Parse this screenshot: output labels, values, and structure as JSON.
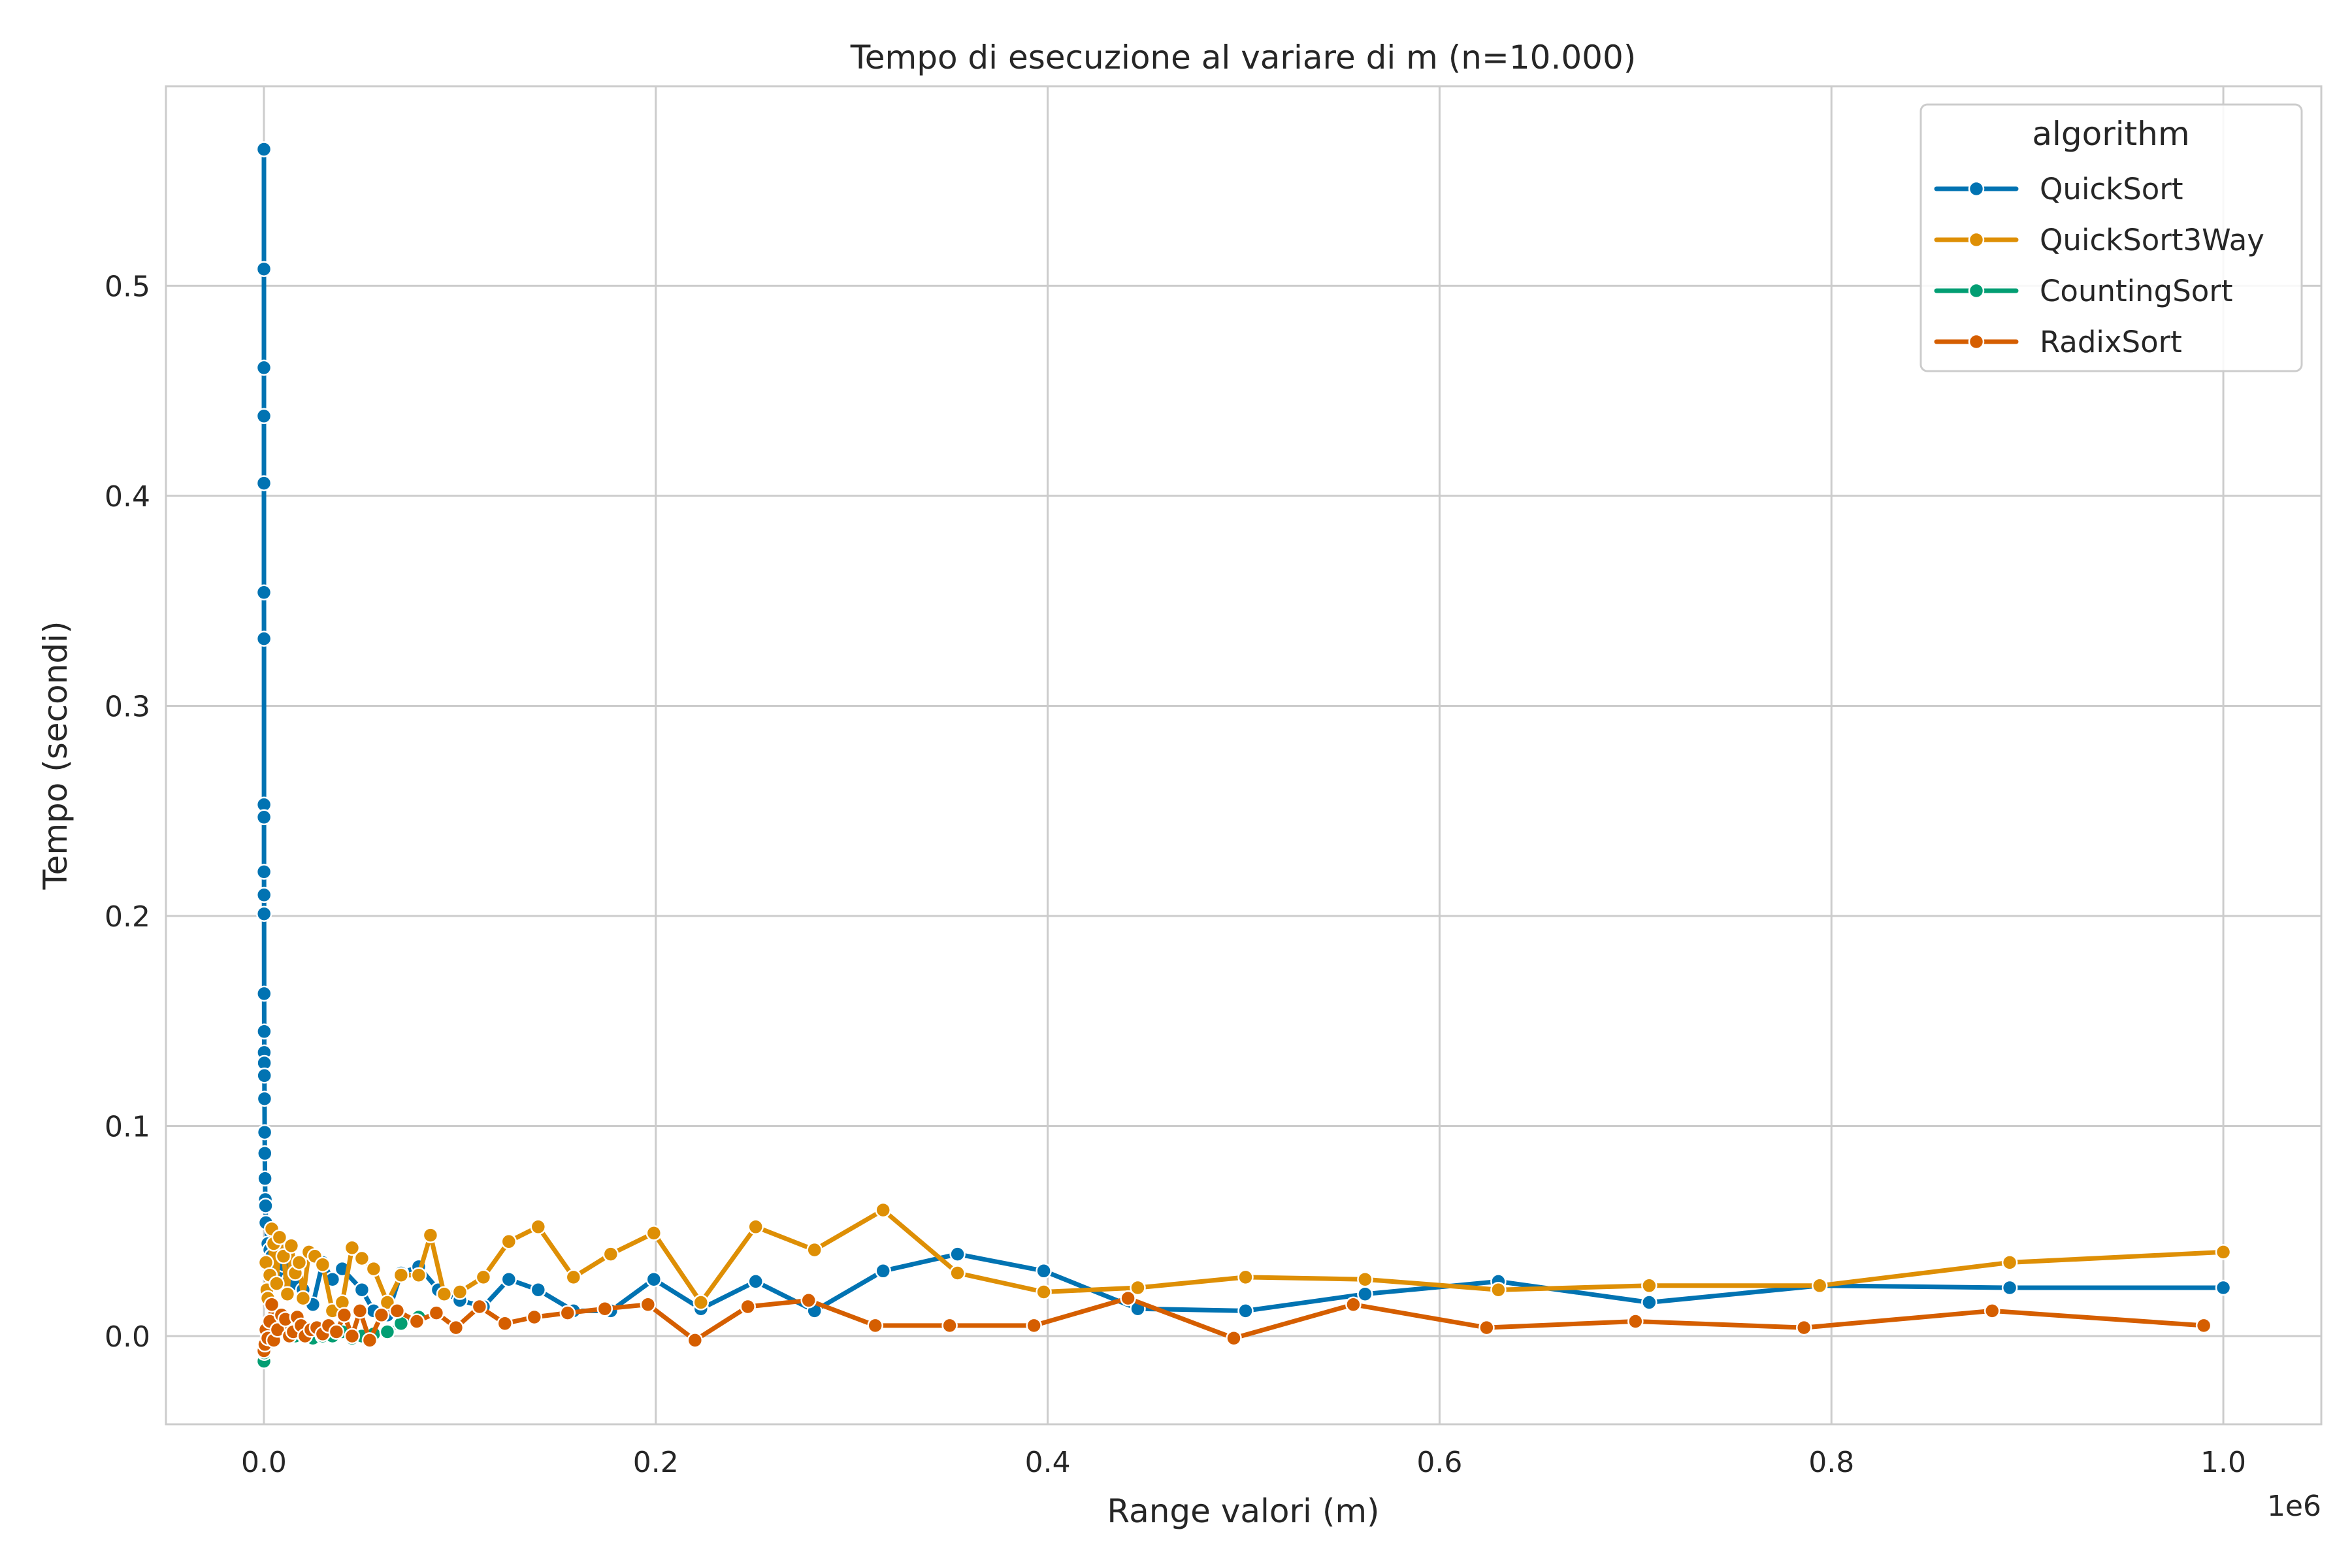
{
  "chart_data": {
    "type": "line",
    "title": "Tempo di esecuzione al variare di m (n=10.000)",
    "xlabel": "Range valori (m)",
    "ylabel": "Tempo (secondi)",
    "x_offset_label": "1e6",
    "xlim": [
      -50000,
      1050000
    ],
    "ylim": [
      -0.042,
      0.595
    ],
    "x_ticks": [
      0,
      200000,
      400000,
      600000,
      800000,
      1000000
    ],
    "x_tick_labels": [
      "0.0",
      "0.2",
      "0.4",
      "0.6",
      "0.8",
      "1.0"
    ],
    "y_ticks": [
      0.0,
      0.1,
      0.2,
      0.3,
      0.4,
      0.5
    ],
    "y_tick_labels": [
      "0.0",
      "0.1",
      "0.2",
      "0.3",
      "0.4",
      "0.5"
    ],
    "grid": true,
    "legend": {
      "title": "algorithm",
      "position": "top-right"
    },
    "series": [
      {
        "name": "QuickSort",
        "color": "#0173b2",
        "points": [
          [
            10,
            0.565
          ],
          [
            12,
            0.508
          ],
          [
            15,
            0.461
          ],
          [
            18,
            0.438
          ],
          [
            22,
            0.406
          ],
          [
            27,
            0.354
          ],
          [
            33,
            0.332
          ],
          [
            40,
            0.253
          ],
          [
            50,
            0.247
          ],
          [
            60,
            0.221
          ],
          [
            75,
            0.21
          ],
          [
            90,
            0.201
          ],
          [
            110,
            0.163
          ],
          [
            135,
            0.145
          ],
          [
            165,
            0.135
          ],
          [
            200,
            0.13
          ],
          [
            250,
            0.124
          ],
          [
            300,
            0.113
          ],
          [
            370,
            0.097
          ],
          [
            450,
            0.087
          ],
          [
            550,
            0.075
          ],
          [
            700,
            0.065
          ],
          [
            850,
            0.062
          ],
          [
            1000,
            0.054
          ],
          [
            2000,
            0.044
          ],
          [
            3000,
            0.041
          ],
          [
            4000,
            0.038
          ],
          [
            5000,
            0.035
          ],
          [
            6500,
            0.038
          ],
          [
            8000,
            0.03
          ],
          [
            10000,
            0.034
          ],
          [
            13000,
            0.027
          ],
          [
            16000,
            0.025
          ],
          [
            20000,
            0.022
          ],
          [
            25000,
            0.015
          ],
          [
            30000,
            0.035
          ],
          [
            35000,
            0.027
          ],
          [
            40000,
            0.032
          ],
          [
            50000,
            0.022
          ],
          [
            56000,
            0.012
          ],
          [
            63000,
            0.01
          ],
          [
            70000,
            0.03
          ],
          [
            79000,
            0.033
          ],
          [
            89000,
            0.022
          ],
          [
            100000,
            0.017
          ],
          [
            112000,
            0.014
          ],
          [
            125000,
            0.027
          ],
          [
            140000,
            0.022
          ],
          [
            158000,
            0.012
          ],
          [
            177000,
            0.012
          ],
          [
            199000,
            0.027
          ],
          [
            223000,
            0.013
          ],
          [
            251000,
            0.026
          ],
          [
            281000,
            0.012
          ],
          [
            316000,
            0.031
          ],
          [
            354000,
            0.039
          ],
          [
            398000,
            0.031
          ],
          [
            446000,
            0.013
          ],
          [
            501000,
            0.012
          ],
          [
            562000,
            0.02
          ],
          [
            630000,
            0.026
          ],
          [
            707000,
            0.016
          ],
          [
            794000,
            0.024
          ],
          [
            891000,
            0.023
          ],
          [
            1000000,
            0.023
          ]
        ]
      },
      {
        "name": "QuickSort3Way",
        "color": "#de8f05",
        "points": [
          [
            1000,
            0.035
          ],
          [
            1500,
            0.022
          ],
          [
            2000,
            0.018
          ],
          [
            3000,
            0.029
          ],
          [
            4000,
            0.051
          ],
          [
            5000,
            0.044
          ],
          [
            6500,
            0.025
          ],
          [
            8000,
            0.047
          ],
          [
            10000,
            0.038
          ],
          [
            12000,
            0.02
          ],
          [
            14000,
            0.043
          ],
          [
            16000,
            0.03
          ],
          [
            18000,
            0.035
          ],
          [
            20000,
            0.018
          ],
          [
            23000,
            0.04
          ],
          [
            26000,
            0.038
          ],
          [
            30000,
            0.034
          ],
          [
            35000,
            0.012
          ],
          [
            40000,
            0.016
          ],
          [
            45000,
            0.042
          ],
          [
            50000,
            0.037
          ],
          [
            56000,
            0.032
          ],
          [
            63000,
            0.016
          ],
          [
            70000,
            0.029
          ],
          [
            79000,
            0.029
          ],
          [
            85000,
            0.048
          ],
          [
            92000,
            0.02
          ],
          [
            100000,
            0.021
          ],
          [
            112000,
            0.028
          ],
          [
            125000,
            0.045
          ],
          [
            140000,
            0.052
          ],
          [
            158000,
            0.028
          ],
          [
            177000,
            0.039
          ],
          [
            199000,
            0.049
          ],
          [
            223000,
            0.016
          ],
          [
            251000,
            0.052
          ],
          [
            281000,
            0.041
          ],
          [
            316000,
            0.06
          ],
          [
            354000,
            0.03
          ],
          [
            398000,
            0.021
          ],
          [
            446000,
            0.023
          ],
          [
            501000,
            0.028
          ],
          [
            562000,
            0.027
          ],
          [
            630000,
            0.022
          ],
          [
            707000,
            0.024
          ],
          [
            794000,
            0.024
          ],
          [
            891000,
            0.035
          ],
          [
            1000000,
            0.04
          ]
        ]
      },
      {
        "name": "CountingSort",
        "color": "#029e73",
        "points": [
          [
            10,
            -0.012
          ],
          [
            200,
            -0.008
          ],
          [
            1000,
            -0.005
          ],
          [
            2000,
            0.0
          ],
          [
            3000,
            0.002
          ],
          [
            5000,
            0.001
          ],
          [
            8000,
            0.003
          ],
          [
            12000,
            0.002
          ],
          [
            16000,
            0.0
          ],
          [
            20000,
            0.001
          ],
          [
            25000,
            -0.001
          ],
          [
            30000,
            0.0
          ],
          [
            35000,
            0.0
          ],
          [
            40000,
            0.002
          ],
          [
            45000,
            -0.001
          ],
          [
            50000,
            0.0
          ],
          [
            56000,
            0.001
          ],
          [
            63000,
            0.002
          ],
          [
            70000,
            0.006
          ],
          [
            79000,
            0.009
          ]
        ]
      },
      {
        "name": "RadixSort",
        "color": "#d55e00",
        "points": [
          [
            10,
            -0.007
          ],
          [
            500,
            -0.004
          ],
          [
            1000,
            0.003
          ],
          [
            2000,
            -0.001
          ],
          [
            3000,
            0.007
          ],
          [
            4000,
            0.015
          ],
          [
            5000,
            -0.002
          ],
          [
            7000,
            0.003
          ],
          [
            9000,
            0.01
          ],
          [
            11000,
            0.008
          ],
          [
            13000,
            0.0
          ],
          [
            15000,
            0.002
          ],
          [
            17000,
            0.009
          ],
          [
            19000,
            0.005
          ],
          [
            21000,
            0.0
          ],
          [
            24000,
            0.003
          ],
          [
            27000,
            0.004
          ],
          [
            30000,
            0.001
          ],
          [
            33000,
            0.005
          ],
          [
            37000,
            0.002
          ],
          [
            41000,
            0.01
          ],
          [
            45000,
            0.0
          ],
          [
            49000,
            0.012
          ],
          [
            54000,
            -0.002
          ],
          [
            60000,
            0.01
          ],
          [
            68000,
            0.012
          ],
          [
            78000,
            0.007
          ],
          [
            88000,
            0.011
          ],
          [
            98000,
            0.004
          ],
          [
            110000,
            0.014
          ],
          [
            123000,
            0.006
          ],
          [
            138000,
            0.009
          ],
          [
            155000,
            0.011
          ],
          [
            174000,
            0.013
          ],
          [
            196000,
            0.015
          ],
          [
            220000,
            -0.002
          ],
          [
            247000,
            0.014
          ],
          [
            278000,
            0.017
          ],
          [
            312000,
            0.005
          ],
          [
            350000,
            0.005
          ],
          [
            393000,
            0.005
          ],
          [
            441000,
            0.018
          ],
          [
            495000,
            -0.001
          ],
          [
            556000,
            0.015
          ],
          [
            624000,
            0.004
          ],
          [
            700000,
            0.007
          ],
          [
            786000,
            0.004
          ],
          [
            882000,
            0.012
          ],
          [
            990000,
            0.005
          ]
        ]
      }
    ]
  }
}
